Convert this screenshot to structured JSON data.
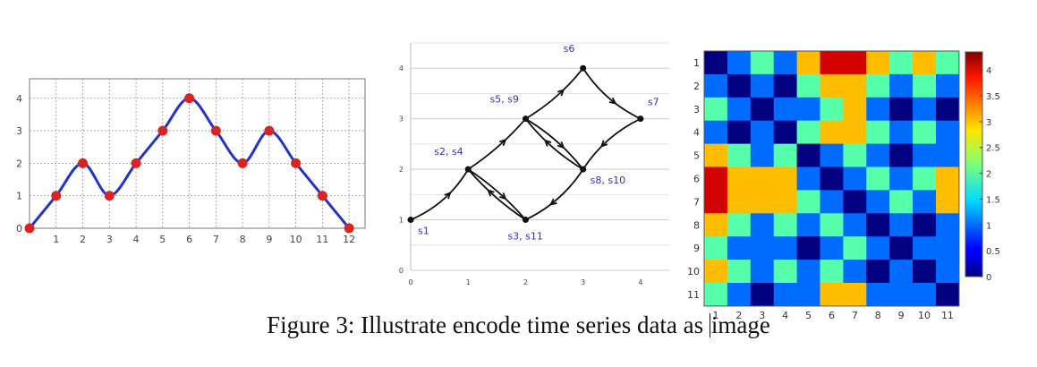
{
  "caption": {
    "prefix": "Figure 3: Illustrate encode time series data as ",
    "suffix": "image"
  },
  "colors": {
    "line": "#2233cc",
    "marker": "#dd2222",
    "graph_label": "#3333aa",
    "edge": "#111111"
  },
  "chart_data": [
    {
      "type": "line",
      "x": [
        0,
        1,
        2,
        3,
        4,
        5,
        6,
        7,
        8,
        9,
        10,
        11,
        12
      ],
      "values": [
        0,
        1,
        2,
        1,
        2,
        3,
        4,
        3,
        2,
        3,
        2,
        1,
        0
      ],
      "x_ticks": [
        "1",
        "2",
        "3",
        "4",
        "5",
        "6",
        "7",
        "8",
        "9",
        "10",
        "11",
        "12"
      ],
      "y_ticks": [
        "0",
        "1",
        "2",
        "3",
        "4"
      ],
      "xlim": [
        0,
        12.6
      ],
      "ylim": [
        0,
        4.6
      ],
      "grid": true
    },
    {
      "type": "graph",
      "nodes": [
        {
          "label": "s1",
          "x": 0,
          "y": 1
        },
        {
          "label": "s2, s4",
          "x": 1,
          "y": 2
        },
        {
          "label": "s3, s11",
          "x": 2,
          "y": 1
        },
        {
          "label": "s5, s9",
          "x": 2,
          "y": 3
        },
        {
          "label": "s6",
          "x": 3,
          "y": 4
        },
        {
          "label": "s7",
          "x": 4,
          "y": 3
        },
        {
          "label": "s8, s10",
          "x": 3,
          "y": 2
        }
      ],
      "x_ticks": [
        "0",
        "1",
        "2",
        "3",
        "4"
      ],
      "y_ticks": [
        "0",
        "1",
        "2",
        "3",
        "4"
      ],
      "xlim": [
        0,
        4.5
      ],
      "ylim": [
        0,
        4.5
      ]
    },
    {
      "type": "heatmap",
      "row_labels": [
        "1",
        "2",
        "3",
        "4",
        "5",
        "6",
        "7",
        "8",
        "9",
        "10",
        "11"
      ],
      "col_labels": [
        "1",
        "2",
        "3",
        "4",
        "5",
        "6",
        "7",
        "8",
        "9",
        "10",
        "11"
      ],
      "values": [
        [
          0,
          1,
          2,
          1,
          3,
          4,
          4,
          3,
          2,
          3,
          2
        ],
        [
          1,
          0,
          1,
          0,
          2,
          3,
          3,
          2,
          1,
          2,
          1
        ],
        [
          2,
          1,
          0,
          1,
          1,
          2,
          3,
          1,
          0,
          1,
          0
        ],
        [
          1,
          0,
          1,
          0,
          2,
          3,
          3,
          2,
          1,
          2,
          1
        ],
        [
          3,
          2,
          1,
          2,
          0,
          1,
          2,
          1,
          0,
          1,
          1
        ],
        [
          4,
          3,
          3,
          3,
          1,
          0,
          1,
          2,
          1,
          2,
          3
        ],
        [
          4,
          3,
          3,
          3,
          2,
          1,
          0,
          1,
          2,
          1,
          3
        ],
        [
          3,
          2,
          1,
          2,
          1,
          2,
          1,
          0,
          1,
          0,
          1
        ],
        [
          2,
          1,
          1,
          1,
          0,
          1,
          2,
          1,
          0,
          1,
          1
        ],
        [
          3,
          2,
          1,
          2,
          1,
          2,
          1,
          0,
          1,
          0,
          1
        ],
        [
          2,
          1,
          0,
          1,
          1,
          3,
          3,
          1,
          1,
          1,
          0
        ]
      ],
      "colorbar_ticks": [
        "0",
        "0.5",
        "1",
        "1.5",
        "2",
        "2.5",
        "3",
        "3.5",
        "4"
      ],
      "colorbar_values": [
        0,
        0.5,
        1,
        1.5,
        2,
        2.5,
        3,
        3.5,
        4
      ],
      "vmin": 0,
      "vmax": 4.35,
      "colormap": "jet"
    }
  ]
}
